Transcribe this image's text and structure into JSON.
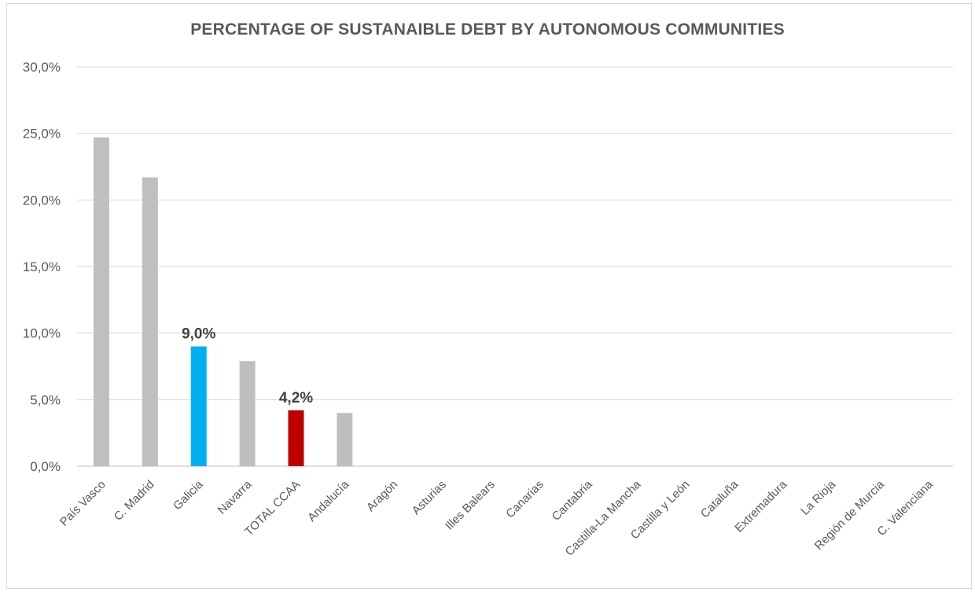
{
  "chart_data": {
    "type": "bar",
    "title": "PERCENTAGE OF SUSTANAIBLE DEBT BY AUTONOMOUS COMMUNITIES",
    "xlabel": "",
    "ylabel": "",
    "ylim": [
      0,
      30
    ],
    "yticks": [
      "0,0%",
      "5,0%",
      "10,0%",
      "15,0%",
      "20,0%",
      "25,0%",
      "30,0%"
    ],
    "grid": true,
    "categories": [
      "País Vasco",
      "C. Madrid",
      "Galicia",
      "Navarra",
      "TOTAL CCAA",
      "Andalucía",
      "Aragón",
      "Asturias",
      "Illes Balears",
      "Canarias",
      "Cantabria",
      "Castilla-La Mancha",
      "Castilla y León",
      "Cataluña",
      "Extremadura",
      "La Rioja",
      "Región de Murcia",
      "C. Valenciana"
    ],
    "values": [
      24.7,
      21.7,
      9.0,
      7.9,
      4.2,
      4.0,
      0,
      0,
      0,
      0,
      0,
      0,
      0,
      0,
      0,
      0,
      0,
      0
    ],
    "colors": [
      "#bfbfbf",
      "#bfbfbf",
      "#00b0f0",
      "#bfbfbf",
      "#c00000",
      "#bfbfbf",
      "#bfbfbf",
      "#bfbfbf",
      "#bfbfbf",
      "#bfbfbf",
      "#bfbfbf",
      "#bfbfbf",
      "#bfbfbf",
      "#bfbfbf",
      "#bfbfbf",
      "#bfbfbf",
      "#bfbfbf",
      "#bfbfbf"
    ],
    "data_labels": [
      "",
      "",
      "9,0%",
      "",
      "4,2%",
      "",
      "",
      "",
      "",
      "",
      "",
      "",
      "",
      "",
      "",
      "",
      "",
      ""
    ]
  }
}
